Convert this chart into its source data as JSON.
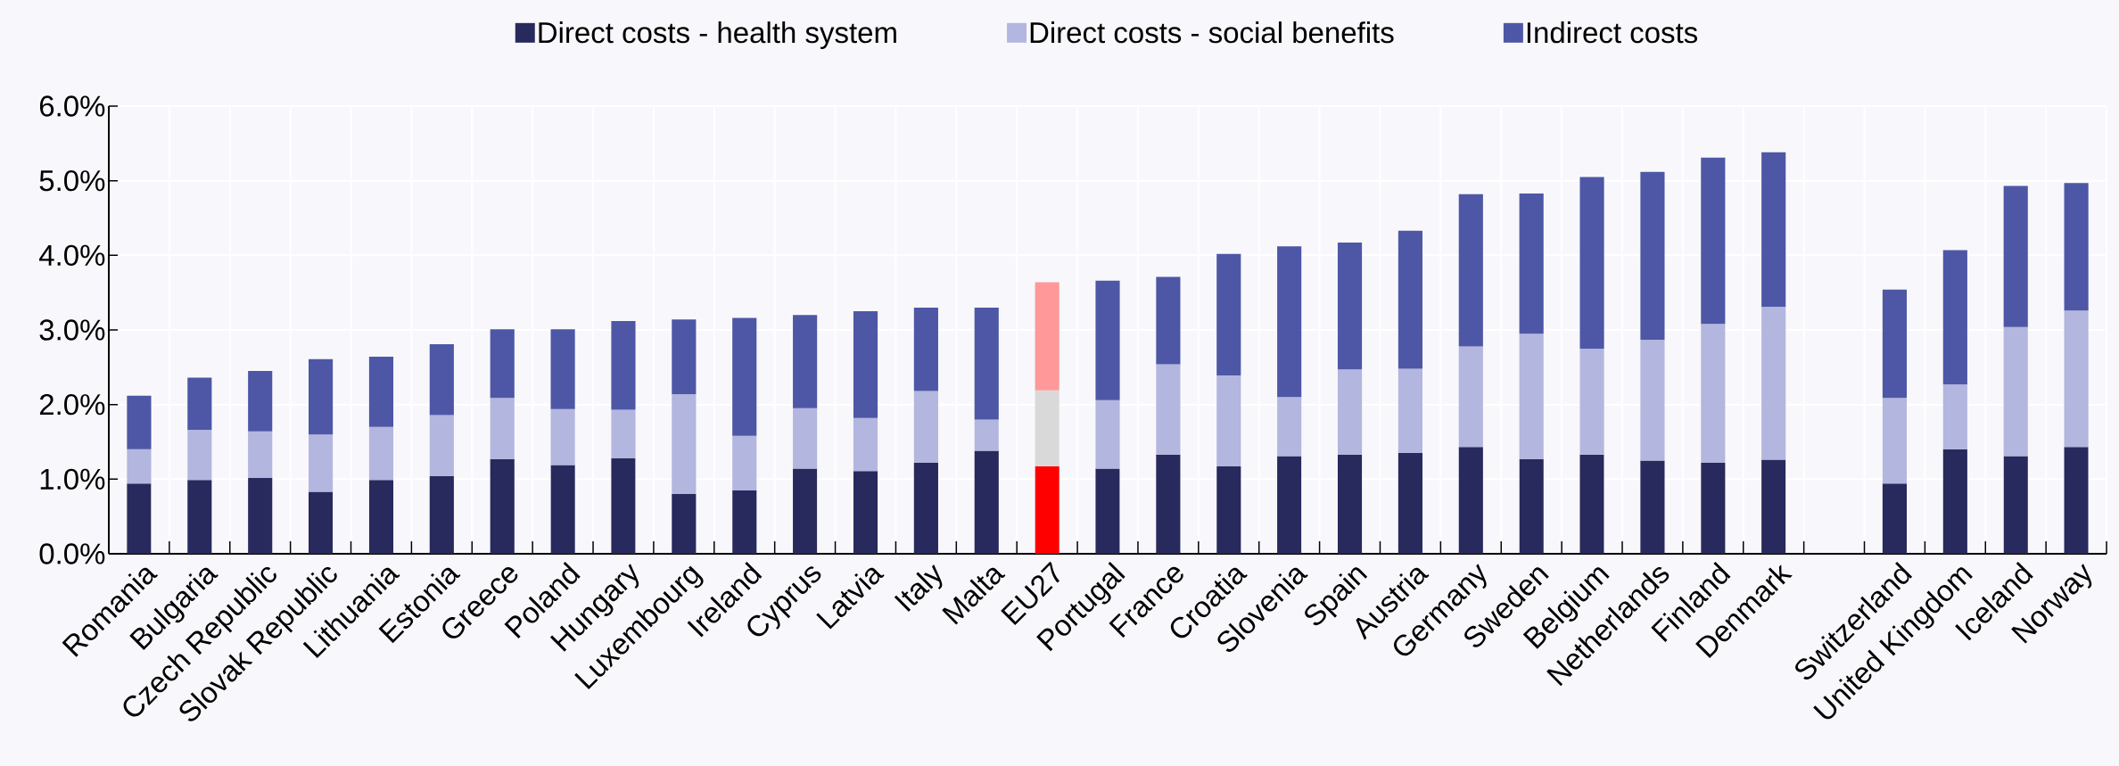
{
  "chart_data": {
    "type": "bar",
    "stacked": true,
    "grid": true,
    "legend": "top",
    "categories": [
      "Romania",
      "Bulgaria",
      "Czech Republic",
      "Slovak Republic",
      "Lithuania",
      "Estonia",
      "Greece",
      "Poland",
      "Hungary",
      "Luxembourg",
      "Ireland",
      "Cyprus",
      "Latvia",
      "Italy",
      "Malta",
      "EU27",
      "Portugal",
      "France",
      "Croatia",
      "Slovenia",
      "Spain",
      "Austria",
      "Germany",
      "Sweden",
      "Belgium",
      "Netherlands",
      "Finland",
      "Denmark",
      null,
      "Switzerland",
      "United Kingdom",
      "Iceland",
      "Norway"
    ],
    "ylim": [
      0,
      6
    ],
    "yticks": [
      {
        "value": 0,
        "label": "0.0%"
      },
      {
        "value": 1,
        "label": "1.0%"
      },
      {
        "value": 2,
        "label": "2.0%"
      },
      {
        "value": 3,
        "label": "3.0%"
      },
      {
        "value": 4,
        "label": "4.0%"
      },
      {
        "value": 5,
        "label": "5.0%"
      },
      {
        "value": 6,
        "label": "6.0%"
      }
    ],
    "series": [
      {
        "name": "Direct costs - health system",
        "color": "#28295c",
        "colors": [
          "#28295c",
          "#28295c",
          "#28295c",
          "#28295c",
          "#28295c",
          "#28295c",
          "#28295c",
          "#28295c",
          "#28295c",
          "#28295c",
          "#28295c",
          "#28295c",
          "#28295c",
          "#28295c",
          "#28295c",
          "#ff0000",
          "#28295c",
          "#28295c",
          "#28295c",
          "#28295c",
          "#28295c",
          "#28295c",
          "#28295c",
          "#28295c",
          "#28295c",
          "#28295c",
          "#28295c",
          "#28295c",
          "#28295c",
          "#28295c",
          "#28295c",
          "#28295c",
          "#28295c"
        ],
        "values": [
          0.94,
          0.99,
          1.02,
          0.83,
          0.99,
          1.04,
          1.27,
          1.19,
          1.28,
          0.8,
          0.85,
          1.14,
          1.11,
          1.22,
          1.38,
          1.17,
          1.14,
          1.33,
          1.17,
          1.31,
          1.33,
          1.35,
          1.43,
          1.27,
          1.33,
          1.25,
          1.22,
          1.26,
          null,
          0.94,
          1.4,
          1.31,
          1.43
        ]
      },
      {
        "name": "Direct costs - social benefits",
        "color": "#b3b6de",
        "colors": [
          "#b3b6de",
          "#b3b6de",
          "#b3b6de",
          "#b3b6de",
          "#b3b6de",
          "#b3b6de",
          "#b3b6de",
          "#b3b6de",
          "#b3b6de",
          "#b3b6de",
          "#b3b6de",
          "#b3b6de",
          "#b3b6de",
          "#b3b6de",
          "#b3b6de",
          "#d9d9d9",
          "#b3b6de",
          "#b3b6de",
          "#b3b6de",
          "#b3b6de",
          "#b3b6de",
          "#b3b6de",
          "#b3b6de",
          "#b3b6de",
          "#b3b6de",
          "#b3b6de",
          "#b3b6de",
          "#b3b6de",
          "#b3b6de",
          "#b3b6de",
          "#b3b6de",
          "#b3b6de",
          "#b3b6de"
        ],
        "values": [
          0.46,
          0.67,
          0.62,
          0.77,
          0.71,
          0.82,
          0.82,
          0.75,
          0.65,
          1.34,
          0.73,
          0.81,
          0.71,
          0.96,
          0.42,
          1.02,
          0.92,
          1.21,
          1.22,
          0.79,
          1.14,
          1.13,
          1.35,
          1.68,
          1.42,
          1.62,
          1.86,
          2.05,
          null,
          1.15,
          0.87,
          1.73,
          1.83
        ]
      },
      {
        "name": "Indirect costs",
        "color": "#4e57a6",
        "colors": [
          "#4e57a6",
          "#4e57a6",
          "#4e57a6",
          "#4e57a6",
          "#4e57a6",
          "#4e57a6",
          "#4e57a6",
          "#4e57a6",
          "#4e57a6",
          "#4e57a6",
          "#4e57a6",
          "#4e57a6",
          "#4e57a6",
          "#4e57a6",
          "#4e57a6",
          "#ff9999",
          "#4e57a6",
          "#4e57a6",
          "#4e57a6",
          "#4e57a6",
          "#4e57a6",
          "#4e57a6",
          "#4e57a6",
          "#4e57a6",
          "#4e57a6",
          "#4e57a6",
          "#4e57a6",
          "#4e57a6",
          "#4e57a6",
          "#4e57a6",
          "#4e57a6",
          "#4e57a6",
          "#4e57a6"
        ],
        "values": [
          0.72,
          0.7,
          0.81,
          1.01,
          0.94,
          0.95,
          0.92,
          1.07,
          1.19,
          1.0,
          1.58,
          1.25,
          1.43,
          1.12,
          1.5,
          1.45,
          1.6,
          1.17,
          1.63,
          2.02,
          1.7,
          1.85,
          2.04,
          1.88,
          2.3,
          2.25,
          2.23,
          2.07,
          null,
          1.45,
          1.8,
          1.89,
          1.71
        ]
      }
    ]
  }
}
